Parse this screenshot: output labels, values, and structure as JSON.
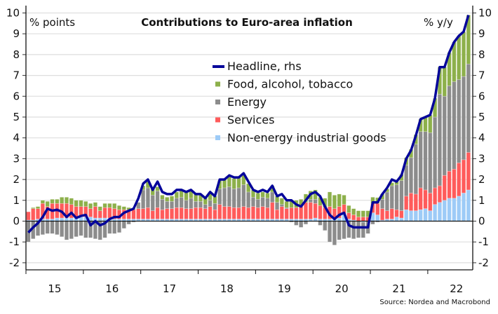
{
  "chart_data": {
    "type": "bar",
    "stacked": true,
    "title": "Contributions to Euro-area inflation",
    "ylabel_left": "% points",
    "ylabel_right": "% y/y",
    "source": "Source: Nordea and Macrobond",
    "ylim": [
      -2,
      10
    ],
    "yticks": [
      -2,
      -1,
      0,
      1,
      2,
      3,
      4,
      5,
      6,
      7,
      8,
      9,
      10
    ],
    "x_start": "2015-01",
    "x_end": "2022-09",
    "frequency": "monthly",
    "xtick_labels": [
      "15",
      "16",
      "17",
      "18",
      "19",
      "20",
      "21",
      "22"
    ],
    "grid": true,
    "legend_position": "center",
    "series": [
      {
        "name": "Non-energy industrial goods",
        "kind": "bar",
        "color": "#9dcbf7",
        "values": [
          0.05,
          0.05,
          0.1,
          0.1,
          0.1,
          0.1,
          0.15,
          0.15,
          0.15,
          0.15,
          0.2,
          0.2,
          0.2,
          0.2,
          0.15,
          0.15,
          0.15,
          0.15,
          0.1,
          0.1,
          0.1,
          0.1,
          0.1,
          0.1,
          0.1,
          0.1,
          0.1,
          0.1,
          0.1,
          0.1,
          0.1,
          0.1,
          0.1,
          0.1,
          0.1,
          0.1,
          0.1,
          0.1,
          0.1,
          0.1,
          0.1,
          0.1,
          0.1,
          0.1,
          0.1,
          0.1,
          0.1,
          0.1,
          0.1,
          0.1,
          0.1,
          0.1,
          0.1,
          0.1,
          0.1,
          0.1,
          0.1,
          0.1,
          0.1,
          0.1,
          0.15,
          0.1,
          0.1,
          0.1,
          0.1,
          0.15,
          0.35,
          0.1,
          0.05,
          0.0,
          -0.05,
          0.0,
          0.4,
          0.3,
          0.05,
          0.1,
          0.1,
          0.2,
          0.15,
          0.55,
          0.5,
          0.5,
          0.55,
          0.6,
          0.5,
          0.8,
          0.9,
          1.0,
          1.1,
          1.1,
          1.2,
          1.35,
          1.5
        ]
      },
      {
        "name": "Services",
        "kind": "bar",
        "color": "#ff5b5b",
        "values": [
          0.4,
          0.55,
          0.5,
          0.75,
          0.6,
          0.75,
          0.7,
          0.7,
          0.7,
          0.65,
          0.5,
          0.5,
          0.5,
          0.4,
          0.55,
          0.35,
          0.5,
          0.5,
          0.5,
          0.45,
          0.45,
          0.45,
          0.45,
          0.5,
          0.5,
          0.55,
          0.4,
          0.55,
          0.45,
          0.5,
          0.5,
          0.55,
          0.55,
          0.5,
          0.5,
          0.55,
          0.55,
          0.5,
          0.6,
          0.45,
          0.7,
          0.6,
          0.6,
          0.55,
          0.55,
          0.6,
          0.55,
          0.6,
          0.55,
          0.6,
          0.55,
          0.8,
          0.45,
          0.6,
          0.5,
          0.55,
          0.55,
          0.6,
          0.8,
          0.8,
          0.7,
          0.65,
          0.55,
          0.6,
          0.5,
          0.55,
          0.45,
          0.3,
          0.25,
          0.2,
          0.2,
          0.2,
          0.45,
          0.55,
          0.55,
          0.4,
          0.5,
          0.35,
          0.35,
          0.65,
          0.85,
          0.8,
          1.05,
          0.9,
          0.85,
          0.8,
          0.8,
          1.2,
          1.3,
          1.4,
          1.6,
          1.6,
          1.8
        ]
      },
      {
        "name": "Energy",
        "kind": "bar",
        "color": "#8c8c8c",
        "values": [
          -1.0,
          -0.85,
          -0.7,
          -0.65,
          -0.6,
          -0.6,
          -0.65,
          -0.75,
          -0.9,
          -0.85,
          -0.75,
          -0.7,
          -0.8,
          -0.8,
          -0.85,
          -0.9,
          -0.8,
          -0.6,
          -0.6,
          -0.55,
          -0.35,
          -0.15,
          -0.05,
          0.3,
          0.9,
          0.95,
          0.75,
          0.8,
          0.5,
          0.35,
          0.35,
          0.45,
          0.5,
          0.4,
          0.5,
          0.3,
          0.3,
          0.2,
          0.3,
          0.3,
          0.75,
          0.9,
          0.95,
          0.9,
          0.95,
          1.05,
          0.75,
          0.45,
          0.4,
          0.45,
          0.45,
          0.5,
          0.35,
          0.1,
          0.05,
          -0.05,
          -0.2,
          -0.3,
          -0.15,
          0.15,
          0.2,
          -0.2,
          -0.45,
          -1.0,
          -1.15,
          -0.9,
          -0.85,
          -0.8,
          -0.85,
          -0.8,
          -0.75,
          -0.6,
          -0.15,
          -0.05,
          0.45,
          0.9,
          1.1,
          1.2,
          1.45,
          1.5,
          1.7,
          2.4,
          2.7,
          2.8,
          2.9,
          3.4,
          4.4,
          3.8,
          4.1,
          4.2,
          4.0,
          4.0,
          4.25
        ]
      },
      {
        "name": "Food, alcohol, tobacco",
        "kind": "bar",
        "color": "#8db04b",
        "values": [
          0.0,
          0.05,
          0.1,
          0.15,
          0.25,
          0.2,
          0.2,
          0.3,
          0.3,
          0.3,
          0.3,
          0.3,
          0.25,
          0.25,
          0.2,
          0.2,
          0.2,
          0.2,
          0.25,
          0.2,
          0.15,
          0.1,
          0.05,
          0.0,
          0.2,
          0.3,
          0.3,
          0.2,
          0.2,
          0.2,
          0.25,
          0.3,
          0.35,
          0.4,
          0.35,
          0.35,
          0.35,
          0.3,
          0.4,
          0.35,
          0.4,
          0.4,
          0.5,
          0.5,
          0.5,
          0.45,
          0.4,
          0.35,
          0.3,
          0.25,
          0.25,
          0.3,
          0.3,
          0.3,
          0.3,
          0.35,
          0.35,
          0.35,
          0.4,
          0.4,
          0.45,
          0.4,
          0.45,
          0.7,
          0.65,
          0.6,
          0.45,
          0.35,
          0.3,
          0.3,
          0.3,
          0.3,
          0.3,
          0.28,
          0.25,
          0.15,
          0.15,
          0.15,
          0.3,
          0.35,
          0.4,
          0.45,
          0.6,
          0.7,
          0.85,
          0.9,
          1.3,
          1.4,
          1.6,
          1.9,
          2.1,
          2.15,
          2.35
        ]
      },
      {
        "name": "Headline, rhs",
        "kind": "line",
        "color": "#05059a",
        "values": [
          -0.55,
          -0.3,
          -0.1,
          0.2,
          0.6,
          0.5,
          0.55,
          0.45,
          0.2,
          0.4,
          0.15,
          0.25,
          0.3,
          -0.2,
          0.0,
          -0.2,
          -0.1,
          0.1,
          0.2,
          0.2,
          0.4,
          0.5,
          0.6,
          1.1,
          1.8,
          2.0,
          1.5,
          1.9,
          1.4,
          1.3,
          1.3,
          1.5,
          1.5,
          1.4,
          1.5,
          1.3,
          1.3,
          1.1,
          1.4,
          1.2,
          2.0,
          2.0,
          2.2,
          2.1,
          2.1,
          2.3,
          1.9,
          1.5,
          1.4,
          1.5,
          1.4,
          1.7,
          1.2,
          1.3,
          1.0,
          1.0,
          0.8,
          0.7,
          1.0,
          1.3,
          1.4,
          1.2,
          0.7,
          0.3,
          0.1,
          0.3,
          0.4,
          -0.2,
          -0.3,
          -0.3,
          -0.3,
          -0.3,
          0.9,
          0.9,
          1.3,
          1.6,
          2.0,
          1.9,
          2.2,
          3.0,
          3.4,
          4.1,
          4.9,
          5.0,
          5.1,
          5.9,
          7.4,
          7.4,
          8.1,
          8.6,
          8.9,
          9.1,
          9.9
        ]
      }
    ]
  }
}
